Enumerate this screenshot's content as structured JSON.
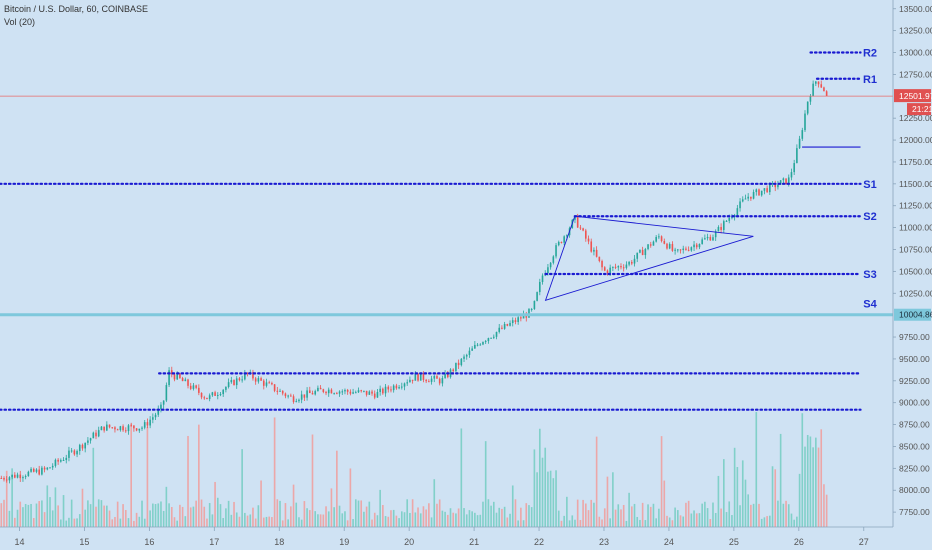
{
  "header": {
    "title": "Bitcoin / U.S. Dollar, 60, COINBASE",
    "indicator": "Vol (20)"
  },
  "colors": {
    "background": "#cfe2f3",
    "up": "#26a69a",
    "down": "#ef5350",
    "volume_up": "#7ccfc6",
    "volume_down": "#eda3a3",
    "level_line": "#1a1ad1",
    "label": "#1f2fd0",
    "support_line": "#7ec8dc",
    "price_line": "#e86a6a",
    "axis_text": "#555555",
    "price_tag_bg": "#e05050"
  },
  "chart_data": {
    "type": "candlestick",
    "symbol": "Bitcoin / U.S. Dollar",
    "interval": "60",
    "exchange": "COINBASE",
    "x_tick_labels": [
      "14",
      "15",
      "16",
      "17",
      "18",
      "19",
      "20",
      "21",
      "22",
      "23",
      "24",
      "25",
      "26",
      "27"
    ],
    "y_tick_labels": [
      "7750.00",
      "8000.00",
      "8250.00",
      "8500.00",
      "8750.00",
      "9000.00",
      "9250.00",
      "9500.00",
      "9750.00",
      "10250.00",
      "10500.00",
      "10750.00",
      "11000.00",
      "11250.00",
      "11500.00",
      "11750.00",
      "12000.00",
      "12250.00",
      "12750.00",
      "13000.00",
      "13250.00",
      "13500.00"
    ],
    "ylim": [
      7580,
      13600
    ],
    "xlim_day": [
      13.7,
      27.45
    ],
    "grid": false,
    "current_price": {
      "value": "12501.97",
      "price": 12501.97,
      "countdown": "21:21"
    },
    "support_level": {
      "value": "10004.86",
      "price": 10004.86,
      "label": "S4"
    },
    "key_points": [
      {
        "day": 13.72,
        "price": 8140
      },
      {
        "day": 14.4,
        "price": 8230
      },
      {
        "day": 14.9,
        "price": 8480
      },
      {
        "day": 15.3,
        "price": 8720
      },
      {
        "day": 15.9,
        "price": 8720
      },
      {
        "day": 16.2,
        "price": 8950
      },
      {
        "day": 16.3,
        "price": 9350
      },
      {
        "day": 16.9,
        "price": 9050
      },
      {
        "day": 17.5,
        "price": 9330
      },
      {
        "day": 18.2,
        "price": 9050
      },
      {
        "day": 18.7,
        "price": 9150
      },
      {
        "day": 19.5,
        "price": 9100
      },
      {
        "day": 20.1,
        "price": 9300
      },
      {
        "day": 20.5,
        "price": 9250
      },
      {
        "day": 21.1,
        "price": 9700
      },
      {
        "day": 21.9,
        "price": 10050
      },
      {
        "day": 22.05,
        "price": 10450
      },
      {
        "day": 22.25,
        "price": 10750
      },
      {
        "day": 22.55,
        "price": 11100
      },
      {
        "day": 23.0,
        "price": 10500
      },
      {
        "day": 23.4,
        "price": 10600
      },
      {
        "day": 23.85,
        "price": 10900
      },
      {
        "day": 24.1,
        "price": 10700
      },
      {
        "day": 24.7,
        "price": 10920
      },
      {
        "day": 25.2,
        "price": 11350
      },
      {
        "day": 25.85,
        "price": 11550
      },
      {
        "day": 26.0,
        "price": 11950
      },
      {
        "day": 26.15,
        "price": 12500
      },
      {
        "day": 26.28,
        "price": 12700
      },
      {
        "day": 26.45,
        "price": 12502
      }
    ],
    "levels": [
      {
        "label": "R2",
        "price": 13000,
        "day_start": 26.18,
        "day_end": 26.95,
        "style": "dotted"
      },
      {
        "label": "R1",
        "price": 12700,
        "day_start": 26.28,
        "day_end": 26.95,
        "style": "dotted"
      },
      {
        "label": "",
        "price": 11920,
        "day_start": 26.05,
        "day_end": 26.95,
        "style": "solid"
      },
      {
        "label": "S1",
        "price": 11500,
        "day_start": 13.7,
        "day_end": 26.95,
        "style": "dotted"
      },
      {
        "label": "S2",
        "price": 11130,
        "day_start": 22.55,
        "day_end": 26.95,
        "style": "dotted"
      },
      {
        "label": "S3",
        "price": 10470,
        "day_start": 22.1,
        "day_end": 26.95,
        "style": "dotted"
      },
      {
        "label": "",
        "price": 9335,
        "day_start": 16.15,
        "day_end": 26.95,
        "style": "dotted"
      },
      {
        "label": "",
        "price": 8920,
        "day_start": 13.7,
        "day_end": 26.95,
        "style": "dotted"
      }
    ],
    "triangle": [
      {
        "day": 22.55,
        "price": 11130
      },
      {
        "day": 25.3,
        "price": 10900
      },
      {
        "day": 22.1,
        "price": 10170
      }
    ],
    "volume_peak_note": "volume bars at bottom, largest spike near 26"
  }
}
